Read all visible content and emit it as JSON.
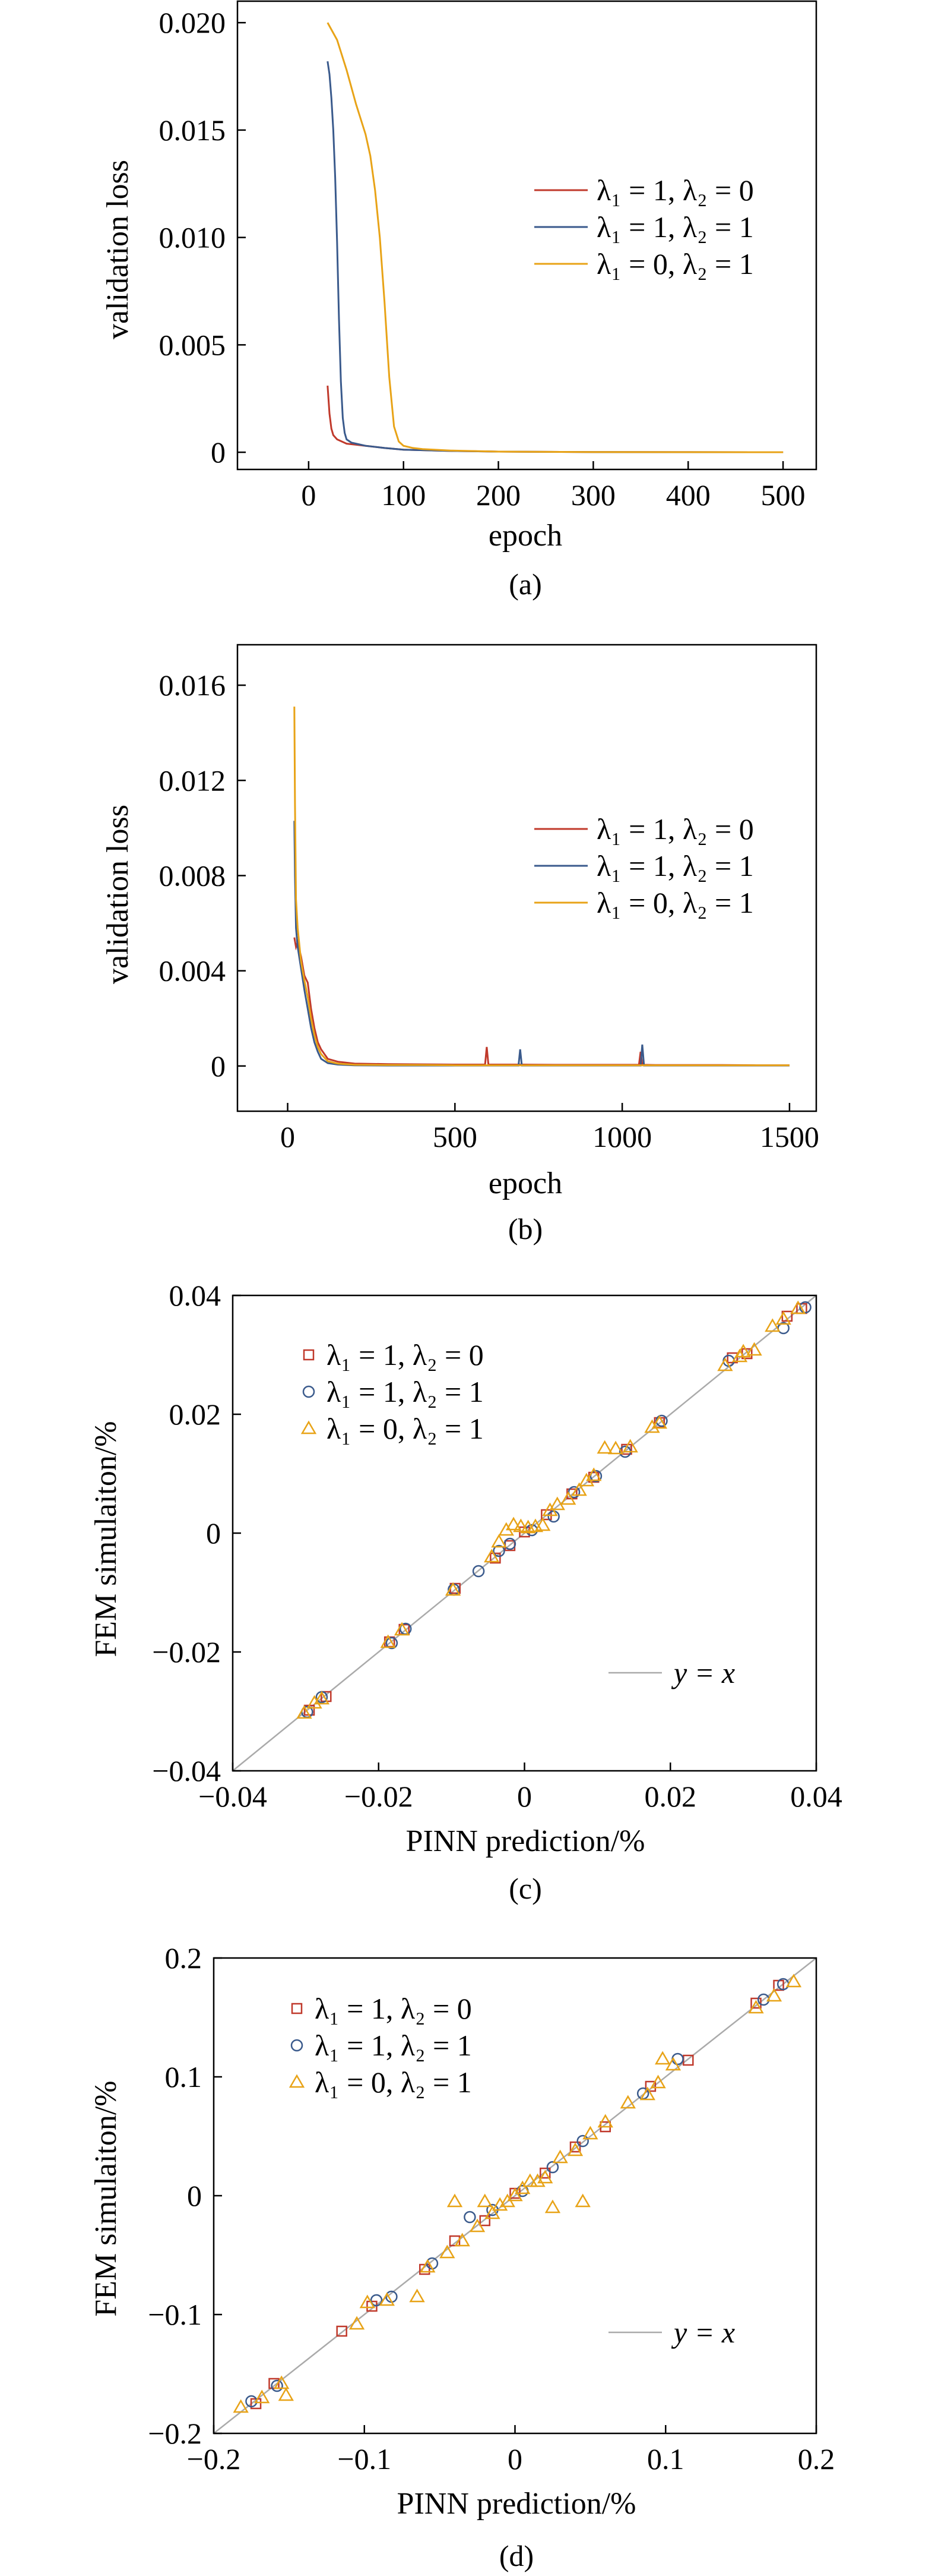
{
  "chart_data": [
    {
      "type": "line",
      "caption": "(a)",
      "xlabel": "epoch",
      "ylabel": "validation loss",
      "xlim": [
        -75,
        535
      ],
      "ylim": [
        -0.0008,
        0.021
      ],
      "xticks": [
        0,
        100,
        200,
        300,
        400,
        500
      ],
      "xtick_labels": [
        "0",
        "100",
        "200",
        "300",
        "400",
        "500"
      ],
      "yticks": [
        0,
        0.005,
        0.01,
        0.015,
        0.02
      ],
      "ytick_labels": [
        "0",
        "0.005",
        "0.010",
        "0.015",
        "0.020"
      ],
      "legend_position": "right",
      "grid": false,
      "series": [
        {
          "name": "λ₁ = 1, λ₂ = 0",
          "color": "#c0392b",
          "x": [
            20,
            22,
            24,
            26,
            30,
            35,
            40,
            50,
            60,
            80,
            100,
            150,
            200,
            300,
            400,
            500
          ],
          "y": [
            0.0031,
            0.0018,
            0.0011,
            0.0008,
            0.0006,
            0.0005,
            0.0004,
            0.00035,
            0.0003,
            0.0002,
            0.00012,
            6e-05,
            3e-05,
            1e-05,
            5e-06,
            3e-06
          ]
        },
        {
          "name": "λ₁ = 1, λ₂ = 1",
          "color": "#3a5a8c",
          "x": [
            20,
            22,
            24,
            26,
            28,
            30,
            32,
            34,
            36,
            38,
            40,
            45,
            50,
            60,
            80,
            100,
            150,
            200,
            300,
            400,
            500
          ],
          "y": [
            0.0182,
            0.0176,
            0.0165,
            0.015,
            0.0128,
            0.0098,
            0.0062,
            0.0033,
            0.0016,
            0.0009,
            0.0006,
            0.00045,
            0.0004,
            0.0003,
            0.0002,
            0.00012,
            6e-05,
            3e-05,
            1e-05,
            5e-06,
            3e-06
          ]
        },
        {
          "name": "λ₁ = 0, λ₂ = 1",
          "color": "#e8a317",
          "x": [
            20,
            30,
            40,
            50,
            55,
            60,
            65,
            70,
            75,
            80,
            85,
            90,
            95,
            100,
            110,
            120,
            150,
            200,
            300,
            400,
            500
          ],
          "y": [
            0.02,
            0.0192,
            0.0178,
            0.0162,
            0.0155,
            0.0148,
            0.0138,
            0.0122,
            0.01,
            0.007,
            0.0035,
            0.0012,
            0.0005,
            0.0003,
            0.0002,
            0.00015,
            8e-05,
            3e-05,
            1e-05,
            5e-06,
            3e-06
          ]
        }
      ]
    },
    {
      "type": "line",
      "caption": "(b)",
      "xlabel": "epoch",
      "ylabel": "validation loss",
      "xlim": [
        -150,
        1580
      ],
      "ylim": [
        -0.0019,
        0.0177
      ],
      "xticks": [
        0,
        500,
        1000,
        1500
      ],
      "xtick_labels": [
        "0",
        "500",
        "1000",
        "1500"
      ],
      "yticks": [
        0,
        0.004,
        0.008,
        0.012,
        0.016
      ],
      "ytick_labels": [
        "0",
        "0.004",
        "0.008",
        "0.012",
        "0.016"
      ],
      "legend_position": "right",
      "grid": false,
      "series": [
        {
          "name": "λ₁ = 1, λ₂ = 0",
          "color": "#c0392b",
          "x": [
            20,
            25,
            30,
            40,
            50,
            60,
            70,
            80,
            90,
            100,
            120,
            150,
            200,
            300,
            400,
            500,
            590,
            595,
            600,
            700,
            800,
            900,
            1000,
            1050,
            1055,
            1060,
            1100,
            1200,
            1300,
            1400,
            1500
          ],
          "y": [
            0.0054,
            0.005,
            0.0052,
            0.0046,
            0.0038,
            0.0035,
            0.0024,
            0.0016,
            0.001,
            0.0007,
            0.0003,
            0.00018,
            0.0001,
            8e-05,
            7e-05,
            6e-05,
            6e-05,
            0.0008,
            6e-05,
            6e-05,
            5e-05,
            5e-05,
            5e-05,
            5e-05,
            0.0006,
            5e-05,
            4e-05,
            4e-05,
            4e-05,
            3e-05,
            3e-05
          ]
        },
        {
          "name": "λ₁ = 1, λ₂ = 1",
          "color": "#3a5a8c",
          "x": [
            20,
            22,
            25,
            30,
            40,
            50,
            60,
            70,
            80,
            90,
            100,
            120,
            150,
            200,
            300,
            400,
            500,
            690,
            695,
            700,
            800,
            900,
            1000,
            1055,
            1060,
            1065,
            1100,
            1200,
            1300,
            1400,
            1500
          ],
          "y": [
            0.0103,
            0.008,
            0.0058,
            0.005,
            0.0041,
            0.0032,
            0.0024,
            0.0016,
            0.001,
            0.0006,
            0.0003,
            0.00012,
            6e-05,
            3e-05,
            2e-05,
            2e-05,
            2e-05,
            2e-05,
            0.0007,
            2e-05,
            2e-05,
            2e-05,
            2e-05,
            2e-05,
            0.0009,
            2e-05,
            2e-05,
            2e-05,
            2e-05,
            2e-05,
            2e-05
          ]
        },
        {
          "name": "λ₁ = 0, λ₂ = 1",
          "color": "#e8a317",
          "x": [
            20,
            22,
            25,
            30,
            40,
            50,
            60,
            70,
            80,
            90,
            100,
            120,
            150,
            200,
            300,
            400,
            500,
            600,
            700,
            800,
            900,
            1000,
            1100,
            1200,
            1300,
            1400,
            1500
          ],
          "y": [
            0.0151,
            0.011,
            0.007,
            0.0058,
            0.0044,
            0.0036,
            0.0029,
            0.002,
            0.0013,
            0.0008,
            0.0005,
            0.0002,
            0.0001,
            5e-05,
            4e-05,
            4e-05,
            3e-05,
            3e-05,
            3e-05,
            3e-05,
            3e-05,
            3e-05,
            3e-05,
            3e-05,
            3e-05,
            3e-05,
            3e-05
          ]
        }
      ]
    },
    {
      "type": "scatter",
      "caption": "(c)",
      "xlabel": "PINN prediction/%",
      "ylabel": "FEM simulaiton/%",
      "xlim": [
        -0.04,
        0.04
      ],
      "ylim": [
        -0.04,
        0.04
      ],
      "xticks": [
        -0.04,
        -0.02,
        0,
        0.02,
        0.04
      ],
      "xtick_labels": [
        "−0.04",
        "−0.02",
        "0",
        "0.02",
        "0.04"
      ],
      "yticks": [
        -0.04,
        -0.02,
        0,
        0.02,
        0.04
      ],
      "ytick_labels": [
        "−0.04",
        "−0.02",
        "0",
        "0.02",
        "0.04"
      ],
      "reference_line": {
        "name": "y = x",
        "color": "#aaaaaa"
      },
      "legend_position": "top-left",
      "grid": false,
      "series": [
        {
          "name": "λ₁ = 1, λ₂ = 0",
          "marker": "square",
          "color": "#c0392b",
          "points": [
            [
              -0.0295,
              -0.0298
            ],
            [
              -0.0272,
              -0.0275
            ],
            [
              -0.0185,
              -0.0183
            ],
            [
              -0.0165,
              -0.0162
            ],
            [
              -0.0095,
              -0.0093
            ],
            [
              -0.004,
              -0.0042
            ],
            [
              -0.002,
              -0.0021
            ],
            [
              0.0,
              0.0002
            ],
            [
              0.003,
              0.0031
            ],
            [
              0.0065,
              0.0066
            ],
            [
              0.0095,
              0.0094
            ],
            [
              0.014,
              0.0141
            ],
            [
              0.0185,
              0.0186
            ],
            [
              0.0285,
              0.0295
            ],
            [
              0.0305,
              0.0302
            ],
            [
              0.036,
              0.0365
            ],
            [
              0.038,
              0.0378
            ]
          ]
        },
        {
          "name": "λ₁ = 1, λ₂ = 1",
          "marker": "circle",
          "color": "#3a5a8c",
          "points": [
            [
              -0.0298,
              -0.0301
            ],
            [
              -0.0278,
              -0.0276
            ],
            [
              -0.0182,
              -0.0185
            ],
            [
              -0.0163,
              -0.0161
            ],
            [
              -0.0097,
              -0.0095
            ],
            [
              -0.0063,
              -0.0064
            ],
            [
              -0.0035,
              -0.003
            ],
            [
              -0.002,
              -0.0018
            ],
            [
              0.001,
              0.0005
            ],
            [
              0.004,
              0.0028
            ],
            [
              0.0068,
              0.0069
            ],
            [
              0.0098,
              0.0096
            ],
            [
              0.0138,
              0.0137
            ],
            [
              0.0188,
              0.0189
            ],
            [
              0.028,
              0.029
            ],
            [
              0.0355,
              0.0345
            ],
            [
              0.0385,
              0.038
            ]
          ]
        },
        {
          "name": "λ₁ = 0, λ₂ = 1",
          "marker": "triangle",
          "color": "#e8a317",
          "points": [
            [
              -0.0302,
              -0.0303
            ],
            [
              -0.0288,
              -0.0286
            ],
            [
              -0.0278,
              -0.0279
            ],
            [
              -0.0187,
              -0.0184
            ],
            [
              -0.0168,
              -0.0163
            ],
            [
              -0.0098,
              -0.0096
            ],
            [
              -0.0045,
              -0.004
            ],
            [
              -0.0035,
              -0.0015
            ],
            [
              -0.0025,
              0.0005
            ],
            [
              -0.0015,
              0.0014
            ],
            [
              -0.0005,
              0.0011
            ],
            [
              0.0005,
              0.0009
            ],
            [
              0.0015,
              0.0011
            ],
            [
              0.0025,
              0.0013
            ],
            [
              0.0035,
              0.0038
            ],
            [
              0.0045,
              0.0048
            ],
            [
              0.006,
              0.0057
            ],
            [
              0.0075,
              0.0072
            ],
            [
              0.0085,
              0.0088
            ],
            [
              0.0095,
              0.0097
            ],
            [
              0.011,
              0.0143
            ],
            [
              0.0125,
              0.0142
            ],
            [
              0.0145,
              0.0145
            ],
            [
              0.0175,
              0.0178
            ],
            [
              0.0185,
              0.0185
            ],
            [
              0.0275,
              0.0282
            ],
            [
              0.0295,
              0.0297
            ],
            [
              0.03,
              0.0305
            ],
            [
              0.0315,
              0.0308
            ],
            [
              0.034,
              0.0348
            ],
            [
              0.0355,
              0.036
            ],
            [
              0.0375,
              0.0378
            ]
          ]
        }
      ]
    },
    {
      "type": "scatter",
      "caption": "(d)",
      "xlabel": "PINN prediction/%",
      "ylabel": "FEM simulaiton/%",
      "xlim": [
        -0.2,
        0.2
      ],
      "ylim": [
        -0.2,
        0.2
      ],
      "xticks": [
        -0.2,
        -0.1,
        0,
        0.1,
        0.2
      ],
      "xtick_labels": [
        "−0.2",
        "−0.1",
        "0",
        "0.1",
        "0.2"
      ],
      "yticks": [
        -0.2,
        -0.1,
        0,
        0.1,
        0.2
      ],
      "ytick_labels": [
        "−0.2",
        "−0.1",
        "0",
        "0.1",
        "0.2"
      ],
      "reference_line": {
        "name": "y = x",
        "color": "#aaaaaa"
      },
      "legend_position": "top-left",
      "grid": false,
      "series": [
        {
          "name": "λ₁ = 1, λ₂ = 0",
          "marker": "square",
          "color": "#c0392b",
          "points": [
            [
              -0.172,
              -0.175
            ],
            [
              -0.16,
              -0.158
            ],
            [
              -0.115,
              -0.114
            ],
            [
              -0.095,
              -0.093
            ],
            [
              -0.06,
              -0.062
            ],
            [
              -0.04,
              -0.038
            ],
            [
              -0.02,
              -0.021
            ],
            [
              0.0,
              0.002
            ],
            [
              0.02,
              0.019
            ],
            [
              0.04,
              0.041
            ],
            [
              0.06,
              0.058
            ],
            [
              0.09,
              0.092
            ],
            [
              0.115,
              0.114
            ],
            [
              0.16,
              0.162
            ],
            [
              0.175,
              0.177
            ]
          ]
        },
        {
          "name": "λ₁ = 1, λ₂ = 1",
          "marker": "circle",
          "color": "#3a5a8c",
          "points": [
            [
              -0.175,
              -0.173
            ],
            [
              -0.158,
              -0.16
            ],
            [
              -0.092,
              -0.088
            ],
            [
              -0.082,
              -0.085
            ],
            [
              -0.055,
              -0.057
            ],
            [
              -0.03,
              -0.018
            ],
            [
              -0.015,
              -0.012
            ],
            [
              0.005,
              0.004
            ],
            [
              0.025,
              0.024
            ],
            [
              0.045,
              0.046
            ],
            [
              0.085,
              0.086
            ],
            [
              0.108,
              0.115
            ],
            [
              0.165,
              0.165
            ],
            [
              0.178,
              0.178
            ]
          ]
        },
        {
          "name": "λ₁ = 0, λ₂ = 1",
          "marker": "triangle",
          "color": "#e8a317",
          "points": [
            [
              -0.182,
              -0.178
            ],
            [
              -0.168,
              -0.17
            ],
            [
              -0.155,
              -0.158
            ],
            [
              -0.152,
              -0.168
            ],
            [
              -0.105,
              -0.108
            ],
            [
              -0.098,
              -0.09
            ],
            [
              -0.085,
              -0.088
            ],
            [
              -0.065,
              -0.085
            ],
            [
              -0.058,
              -0.06
            ],
            [
              -0.045,
              -0.048
            ],
            [
              -0.04,
              -0.005
            ],
            [
              -0.035,
              -0.038
            ],
            [
              -0.025,
              -0.026
            ],
            [
              -0.02,
              -0.005
            ],
            [
              -0.015,
              -0.015
            ],
            [
              -0.01,
              -0.008
            ],
            [
              -0.005,
              -0.005
            ],
            [
              0.0,
              0.0
            ],
            [
              0.005,
              0.006
            ],
            [
              0.01,
              0.012
            ],
            [
              0.015,
              0.012
            ],
            [
              0.02,
              0.015
            ],
            [
              0.025,
              -0.01
            ],
            [
              0.03,
              0.032
            ],
            [
              0.04,
              0.038
            ],
            [
              0.045,
              -0.005
            ],
            [
              0.05,
              0.052
            ],
            [
              0.06,
              0.062
            ],
            [
              0.075,
              0.078
            ],
            [
              0.088,
              0.085
            ],
            [
              0.095,
              0.095
            ],
            [
              0.098,
              0.115
            ],
            [
              0.105,
              0.11
            ],
            [
              0.16,
              0.158
            ],
            [
              0.172,
              0.168
            ],
            [
              0.185,
              0.18
            ]
          ]
        }
      ]
    }
  ]
}
